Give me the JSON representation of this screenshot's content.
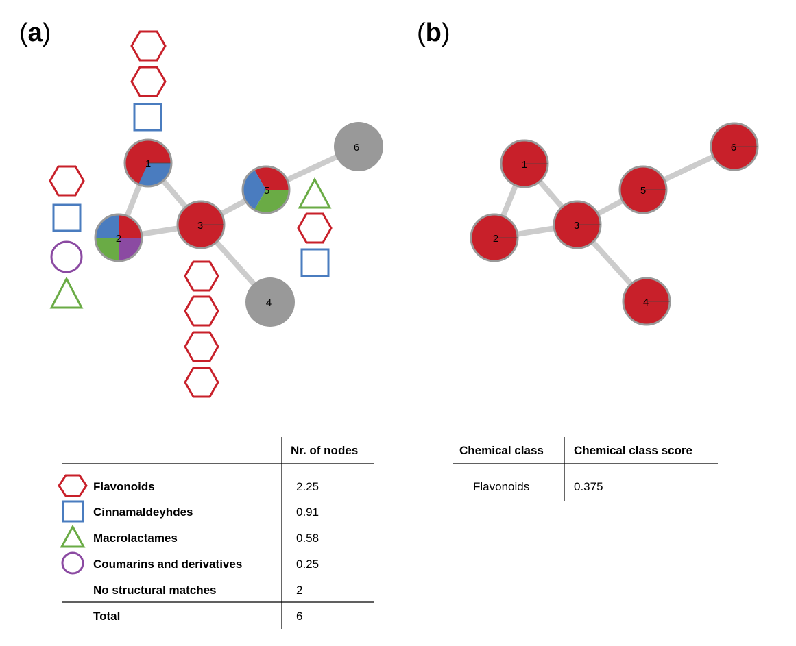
{
  "panel_a": {
    "label": "a",
    "nodes": [
      {
        "id": "1"
      },
      {
        "id": "2"
      },
      {
        "id": "3"
      },
      {
        "id": "4"
      },
      {
        "id": "5"
      },
      {
        "id": "6"
      }
    ],
    "table": {
      "header": "Nr. of nodes",
      "rows": [
        {
          "label": "Flavonoids",
          "value": "2.25",
          "icon": "hexagon-icon",
          "color": "#c8202a"
        },
        {
          "label": "Cinnamaldeyhdes",
          "value": "0.91",
          "icon": "square-icon",
          "color": "#4a7cbf"
        },
        {
          "label": "Macrolactames",
          "value": "0.58",
          "icon": "triangle-icon",
          "color": "#6aab45"
        },
        {
          "label": "Coumarins and derivatives",
          "value": "0.25",
          "icon": "circle-icon",
          "color": "#8b4aa2"
        },
        {
          "label": "No structural matches",
          "value": "2",
          "icon": "",
          "color": ""
        }
      ],
      "total_label": "Total",
      "total_value": "6"
    }
  },
  "panel_b": {
    "label": "b",
    "nodes": [
      {
        "id": "1"
      },
      {
        "id": "2"
      },
      {
        "id": "3"
      },
      {
        "id": "4"
      },
      {
        "id": "5"
      },
      {
        "id": "6"
      }
    ],
    "table": {
      "header_class": "Chemical class",
      "header_score": "Chemical class score",
      "row_class": "Flavonoids",
      "row_score": "0.375"
    }
  },
  "colors": {
    "flavonoid": "#c8202a",
    "cinnamaldehyde": "#4a7cbf",
    "macrolactame": "#6aab45",
    "coumarin": "#8b4aa2",
    "no_match": "#999999",
    "edge": "#cccccc",
    "node_border": "#999999"
  }
}
